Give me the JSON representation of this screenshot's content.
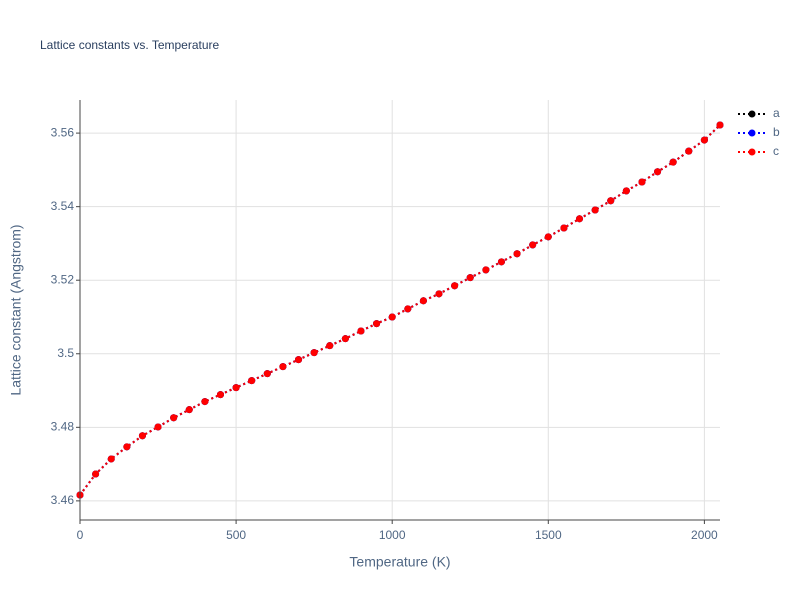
{
  "chart_data": {
    "type": "line",
    "title": "Lattice constants vs. Temperature",
    "x_label": "Temperature (K)",
    "y_label": "Lattice constant (Angstrom)",
    "x": [
      0,
      50,
      100,
      150,
      200,
      250,
      300,
      350,
      400,
      450,
      500,
      550,
      600,
      650,
      700,
      750,
      800,
      850,
      900,
      950,
      1000,
      1050,
      1100,
      1150,
      1200,
      1250,
      1300,
      1350,
      1400,
      1450,
      1500,
      1550,
      1600,
      1650,
      1700,
      1750,
      1800,
      1850,
      1900,
      1950,
      2000,
      2050
    ],
    "series": [
      {
        "name": "a",
        "color": "#000000",
        "values": [
          3.4616,
          3.4673,
          3.4714,
          3.4747,
          3.4777,
          3.4801,
          3.4826,
          3.4848,
          3.487,
          3.4889,
          3.4908,
          3.4927,
          3.4946,
          3.4965,
          3.4984,
          3.5003,
          3.5022,
          3.5041,
          3.5062,
          3.5082,
          3.51,
          3.5122,
          3.5144,
          3.5163,
          3.5185,
          3.5207,
          3.5228,
          3.525,
          3.5272,
          3.5296,
          3.5318,
          3.5342,
          3.5367,
          3.5391,
          3.5416,
          3.5443,
          3.5467,
          3.5495,
          3.5521,
          3.5551,
          3.5581,
          3.5622
        ]
      },
      {
        "name": "b",
        "color": "#0000ff",
        "values": [
          3.4616,
          3.4673,
          3.4714,
          3.4747,
          3.4777,
          3.4801,
          3.4826,
          3.4848,
          3.487,
          3.4889,
          3.4908,
          3.4927,
          3.4946,
          3.4965,
          3.4984,
          3.5003,
          3.5022,
          3.5041,
          3.5062,
          3.5082,
          3.51,
          3.5122,
          3.5144,
          3.5163,
          3.5185,
          3.5207,
          3.5228,
          3.525,
          3.5272,
          3.5296,
          3.5318,
          3.5342,
          3.5367,
          3.5391,
          3.5416,
          3.5443,
          3.5467,
          3.5495,
          3.5521,
          3.5551,
          3.5581,
          3.5622
        ]
      },
      {
        "name": "c",
        "color": "#ff0000",
        "values": [
          3.4616,
          3.4673,
          3.4714,
          3.4747,
          3.4777,
          3.4801,
          3.4826,
          3.4848,
          3.487,
          3.4889,
          3.4908,
          3.4927,
          3.4946,
          3.4965,
          3.4984,
          3.5003,
          3.5022,
          3.5041,
          3.5062,
          3.5082,
          3.51,
          3.5122,
          3.5144,
          3.5163,
          3.5185,
          3.5207,
          3.5228,
          3.525,
          3.5272,
          3.5296,
          3.5318,
          3.5342,
          3.5367,
          3.5391,
          3.5416,
          3.5443,
          3.5467,
          3.5495,
          3.5521,
          3.5551,
          3.5581,
          3.5622
        ]
      }
    ],
    "xlim": [
      0,
      2050
    ],
    "xticks": [
      0,
      500,
      1000,
      1500,
      2000
    ],
    "ylim": [
      3.4548,
      3.569
    ],
    "yticks": [
      3.46,
      3.48,
      3.5,
      3.52,
      3.54,
      3.56
    ],
    "grid": true,
    "legend": "top-right"
  }
}
